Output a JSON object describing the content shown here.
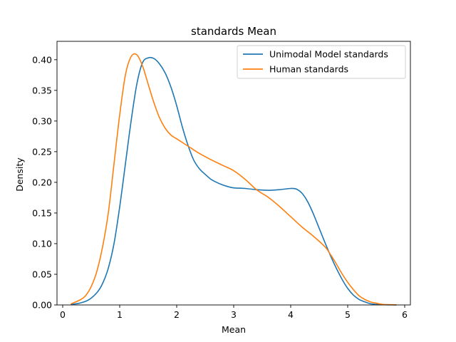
{
  "chart_data": {
    "type": "line",
    "title": "standards Mean",
    "xlabel": "Mean",
    "ylabel": "Density",
    "xlim": [
      -0.1,
      6.1
    ],
    "ylim": [
      0.0,
      0.43
    ],
    "xticks": [
      0,
      1,
      2,
      3,
      4,
      5,
      6
    ],
    "xtick_labels": [
      "0",
      "1",
      "2",
      "3",
      "4",
      "5",
      "6"
    ],
    "yticks": [
      0.0,
      0.05,
      0.1,
      0.15,
      0.2,
      0.25,
      0.3,
      0.35,
      0.4
    ],
    "ytick_labels": [
      "0.00",
      "0.05",
      "0.10",
      "0.15",
      "0.20",
      "0.25",
      "0.30",
      "0.35",
      "0.40"
    ],
    "grid": false,
    "legend_position": "top-right",
    "series": [
      {
        "name": "Unimodal Model standards",
        "color": "#1f77b4",
        "x": [
          0.15,
          0.3,
          0.45,
          0.6,
          0.7,
          0.8,
          0.9,
          1.0,
          1.1,
          1.2,
          1.3,
          1.4,
          1.5,
          1.6,
          1.7,
          1.8,
          1.9,
          2.0,
          2.1,
          2.2,
          2.3,
          2.4,
          2.5,
          2.6,
          2.7,
          2.8,
          2.9,
          3.0,
          3.2,
          3.4,
          3.6,
          3.8,
          4.0,
          4.1,
          4.2,
          4.3,
          4.4,
          4.5,
          4.6,
          4.7,
          4.8,
          4.9,
          5.0,
          5.1,
          5.2,
          5.3,
          5.4,
          5.5,
          5.6,
          5.7,
          5.85
        ],
        "y": [
          0.001,
          0.003,
          0.008,
          0.02,
          0.035,
          0.06,
          0.1,
          0.16,
          0.23,
          0.3,
          0.36,
          0.395,
          0.403,
          0.402,
          0.393,
          0.378,
          0.355,
          0.325,
          0.29,
          0.26,
          0.236,
          0.222,
          0.213,
          0.205,
          0.2,
          0.196,
          0.193,
          0.191,
          0.19,
          0.188,
          0.187,
          0.188,
          0.19,
          0.189,
          0.182,
          0.168,
          0.148,
          0.125,
          0.102,
          0.08,
          0.06,
          0.042,
          0.027,
          0.016,
          0.009,
          0.005,
          0.002,
          0.001,
          0.0005,
          0.0002,
          0.0001
        ]
      },
      {
        "name": "Human standards",
        "color": "#ff7f0e",
        "x": [
          0.15,
          0.3,
          0.4,
          0.5,
          0.6,
          0.7,
          0.8,
          0.9,
          1.0,
          1.1,
          1.2,
          1.3,
          1.4,
          1.5,
          1.6,
          1.7,
          1.8,
          1.9,
          2.0,
          2.2,
          2.4,
          2.6,
          2.8,
          3.0,
          3.2,
          3.4,
          3.6,
          3.8,
          4.0,
          4.2,
          4.4,
          4.6,
          4.7,
          4.8,
          4.9,
          5.0,
          5.1,
          5.2,
          5.3,
          5.4,
          5.5,
          5.6,
          5.7,
          5.85
        ],
        "y": [
          0.002,
          0.008,
          0.015,
          0.03,
          0.055,
          0.095,
          0.15,
          0.23,
          0.31,
          0.375,
          0.405,
          0.408,
          0.39,
          0.36,
          0.33,
          0.305,
          0.288,
          0.277,
          0.271,
          0.259,
          0.247,
          0.237,
          0.228,
          0.219,
          0.205,
          0.188,
          0.176,
          0.161,
          0.144,
          0.127,
          0.112,
          0.095,
          0.082,
          0.067,
          0.051,
          0.037,
          0.025,
          0.015,
          0.009,
          0.005,
          0.003,
          0.001,
          0.0005,
          0.0002
        ]
      }
    ]
  }
}
